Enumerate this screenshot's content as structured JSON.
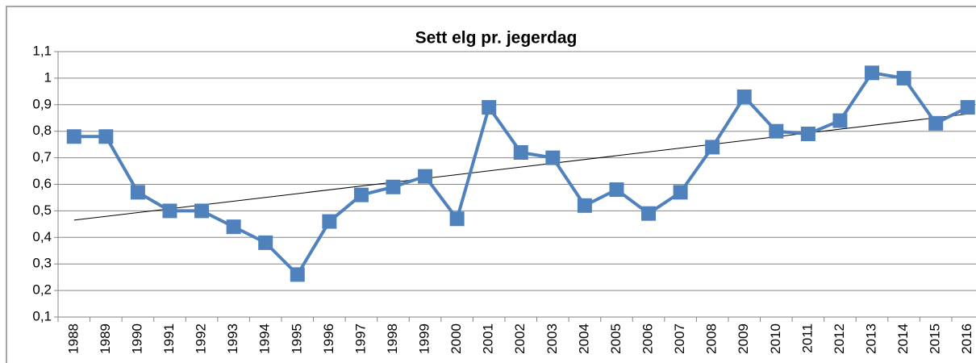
{
  "chart_data": {
    "type": "line",
    "title": "Sett elg pr. jegerdag",
    "categories": [
      "1988",
      "1989",
      "1990",
      "1991",
      "1992",
      "1993",
      "1994",
      "1995",
      "1996",
      "1997",
      "1998",
      "1999",
      "2000",
      "2001",
      "2002",
      "2003",
      "2004",
      "2005",
      "2006",
      "2007",
      "2008",
      "2009",
      "2010",
      "2011",
      "2012",
      "2013",
      "2014",
      "2015",
      "2016"
    ],
    "series": [
      {
        "color": "#4f81bd",
        "values": [
          0.78,
          0.78,
          0.57,
          0.5,
          0.5,
          0.44,
          0.38,
          0.26,
          0.46,
          0.56,
          0.59,
          0.63,
          0.47,
          0.89,
          0.72,
          0.7,
          0.52,
          0.58,
          0.49,
          0.57,
          0.74,
          0.93,
          0.8,
          0.79,
          0.84,
          1.02,
          1.0,
          0.83,
          0.89
        ]
      }
    ],
    "trendline": {
      "color": "#000000",
      "values": [
        0.465,
        0.865
      ]
    },
    "ylim": [
      0.1,
      1.1
    ],
    "yticks": [
      {
        "value": 0.1,
        "label": "0,1"
      },
      {
        "value": 0.2,
        "label": "0,2"
      },
      {
        "value": 0.3,
        "label": "0,3"
      },
      {
        "value": 0.4,
        "label": "0,4"
      },
      {
        "value": 0.5,
        "label": "0,5"
      },
      {
        "value": 0.6,
        "label": "0,6"
      },
      {
        "value": 0.7,
        "label": "0,7"
      },
      {
        "value": 0.8,
        "label": "0,8"
      },
      {
        "value": 0.9,
        "label": "0,9"
      },
      1,
      {
        "value": 1.1,
        "label": "1,1"
      }
    ],
    "grid": true
  }
}
